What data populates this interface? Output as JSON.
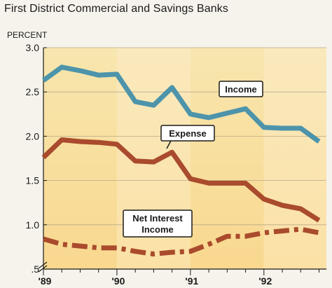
{
  "title": "First District Commercial and Savings Banks",
  "chart_data": {
    "type": "line",
    "title": "First District Commercial and Savings Banks",
    "ylabel": "PERCENT",
    "ylim": [
      0.5,
      3.0
    ],
    "yticks": [
      {
        "v": 3.0,
        "label": "3.0"
      },
      {
        "v": 2.5,
        "label": "2.5"
      },
      {
        "v": 2.0,
        "label": "2.0"
      },
      {
        "v": 1.5,
        "label": "1.5"
      },
      {
        "v": 1.0,
        "label": "1.0"
      },
      {
        "v": 0.5,
        "label": ".5"
      }
    ],
    "year_labels": [
      "'89",
      "'90",
      "'91",
      "'92"
    ],
    "x": [
      1989.0,
      1989.25,
      1989.5,
      1989.75,
      1990.0,
      1990.25,
      1990.5,
      1990.75,
      1991.0,
      1991.25,
      1991.5,
      1991.75,
      1992.0,
      1992.25,
      1992.5,
      1992.75
    ],
    "series": [
      {
        "name": "Income",
        "color": "#4d94ab",
        "dash": "solid",
        "values": [
          2.63,
          2.78,
          2.74,
          2.69,
          2.7,
          2.39,
          2.35,
          2.55,
          2.25,
          2.21,
          2.26,
          2.31,
          2.1,
          2.09,
          2.09,
          1.94
        ]
      },
      {
        "name": "Expense",
        "color": "#a94b2c",
        "dash": "solid",
        "values": [
          1.76,
          1.96,
          1.94,
          1.93,
          1.91,
          1.72,
          1.71,
          1.82,
          1.52,
          1.47,
          1.47,
          1.47,
          1.29,
          1.22,
          1.18,
          1.05
        ]
      },
      {
        "name": "Net Interest Income",
        "color": "#a94b2c",
        "dash": "dashdot",
        "values": [
          0.84,
          0.78,
          0.76,
          0.74,
          0.74,
          0.7,
          0.67,
          0.69,
          0.7,
          0.78,
          0.87,
          0.87,
          0.91,
          0.93,
          0.95,
          0.91
        ]
      }
    ],
    "annotations": [
      {
        "text": "Income"
      },
      {
        "text": "Expense"
      },
      {
        "lines": [
          "Net Interest",
          "Income"
        ]
      }
    ]
  }
}
